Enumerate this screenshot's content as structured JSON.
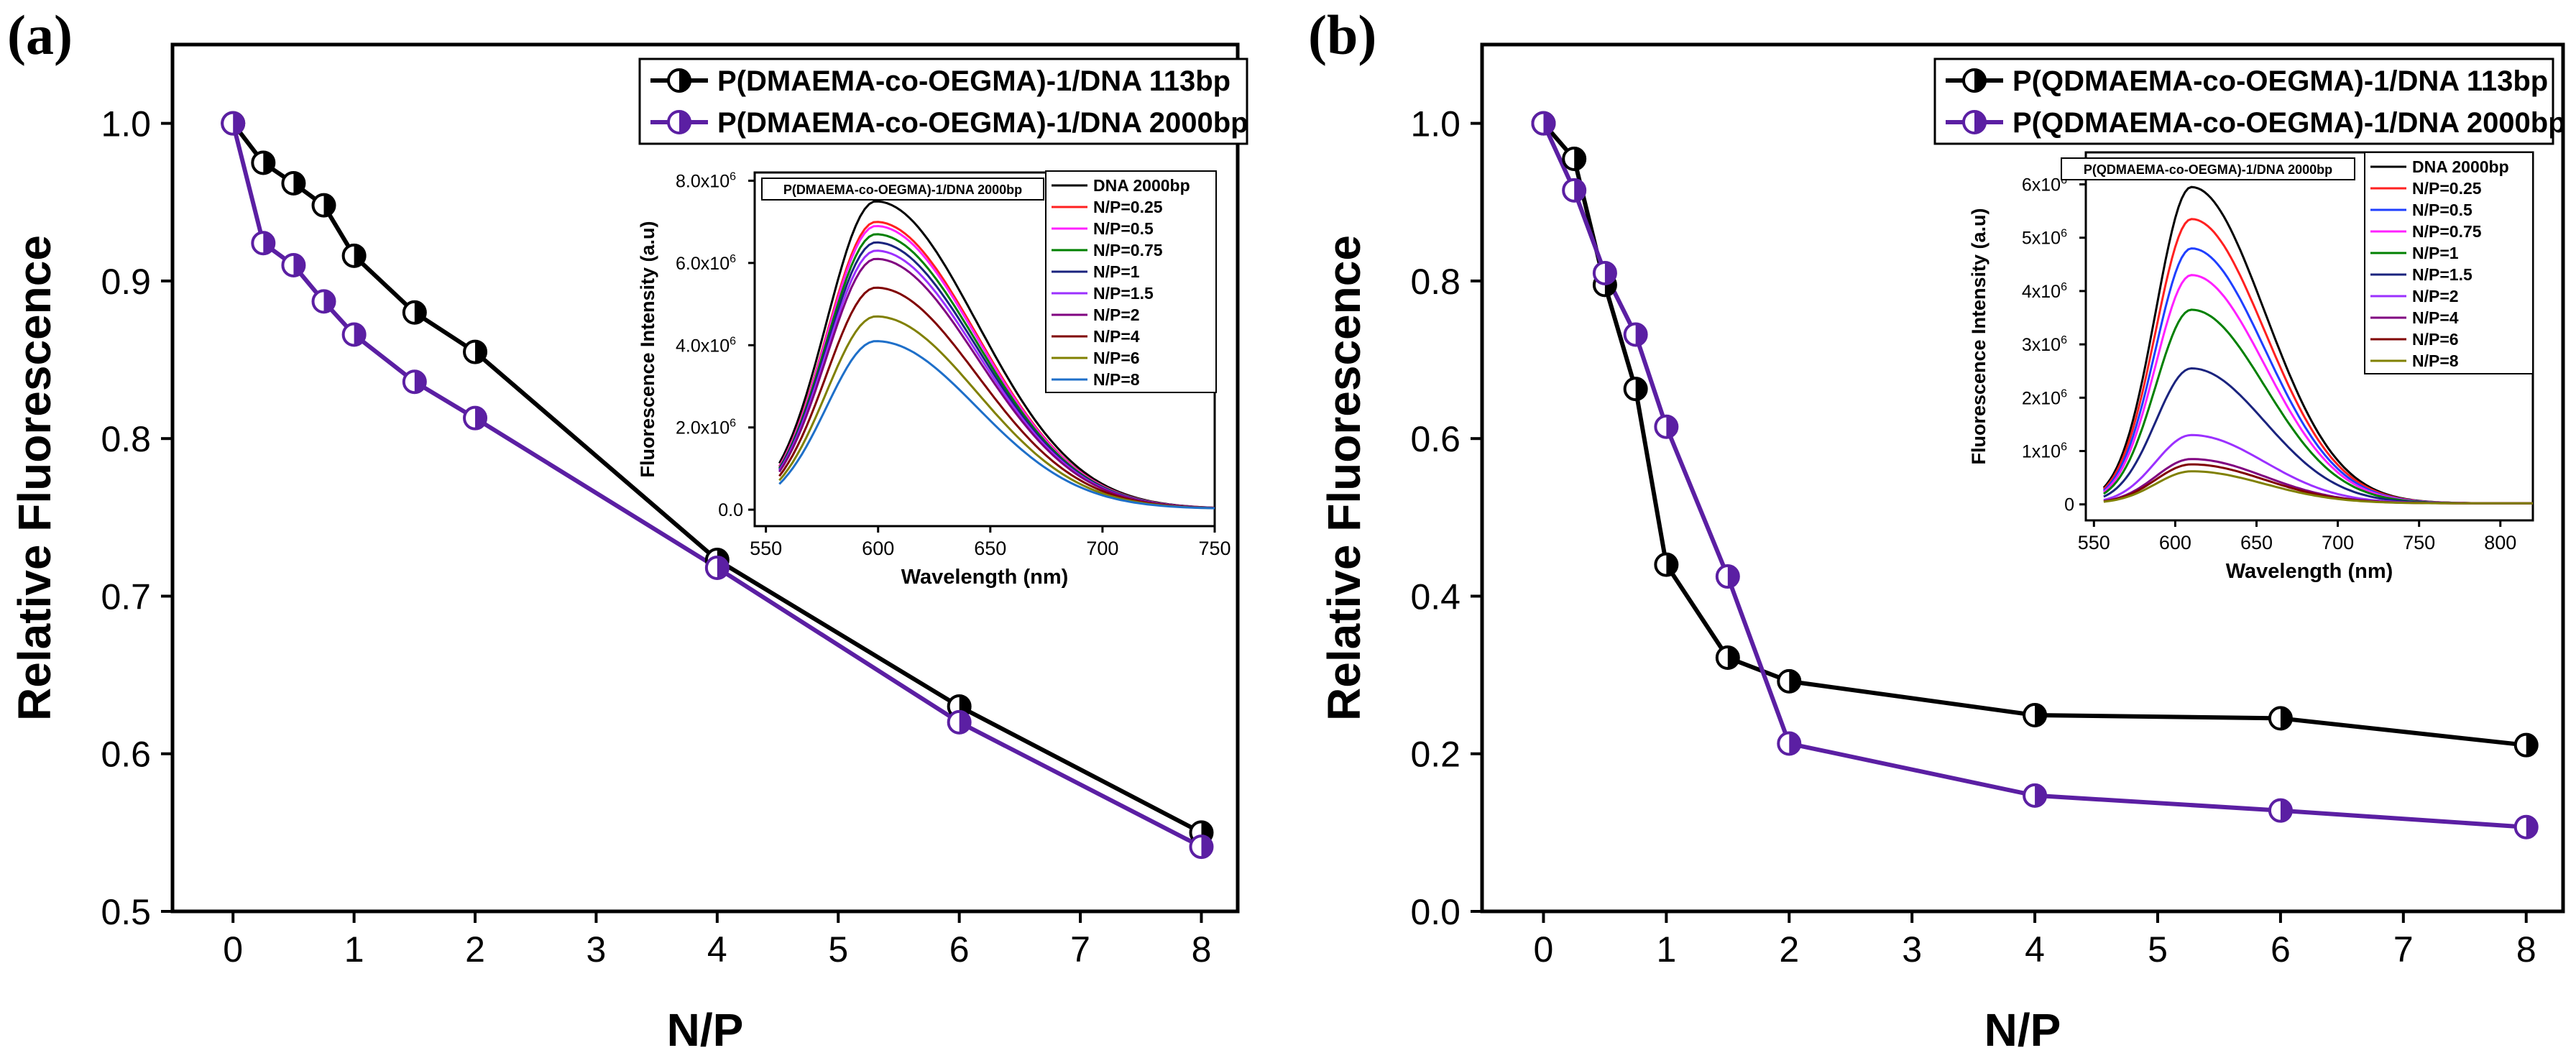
{
  "colors": {
    "dna113": "#000000",
    "dna2000": "#5b1fa3",
    "axis": "#000000"
  },
  "chart_data": [
    {
      "type": "line",
      "panel_label": "(a)",
      "xlabel": "N/P",
      "ylabel": "Relative Fluorescence",
      "xlim": [
        -0.5,
        8.3
      ],
      "ylim": [
        0.5,
        1.05
      ],
      "xticks": [
        0,
        1,
        2,
        3,
        4,
        5,
        6,
        7,
        8
      ],
      "xtick_labels": [
        "0",
        "1",
        "2",
        "3",
        "4",
        "5",
        "6",
        "7",
        "8"
      ],
      "yticks": [
        0.5,
        0.6,
        0.7,
        0.8,
        0.9,
        1.0
      ],
      "ytick_labels": [
        "0.5",
        "0.6",
        "0.7",
        "0.8",
        "0.9",
        "1.0"
      ],
      "legend": "top-right",
      "series": [
        {
          "name": "P(DMAEMA-co-OEGMA)-1/DNA 113bp",
          "color": "#000000",
          "x": [
            0,
            0.25,
            0.5,
            0.75,
            1,
            1.5,
            2,
            4,
            6,
            8
          ],
          "values": [
            1.0,
            0.975,
            0.962,
            0.948,
            0.916,
            0.88,
            0.855,
            0.723,
            0.63,
            0.55
          ]
        },
        {
          "name": "P(DMAEMA-co-OEGMA)-1/DNA 2000bp",
          "color": "#5b1fa3",
          "x": [
            0,
            0.25,
            0.5,
            0.75,
            1,
            1.5,
            2,
            4,
            6,
            8
          ],
          "values": [
            1.0,
            0.924,
            0.91,
            0.887,
            0.866,
            0.836,
            0.813,
            0.718,
            0.62,
            0.541
          ]
        }
      ],
      "inset": {
        "type": "line",
        "title": "P(DMAEMA-co-OEGMA)-1/DNA 2000bp",
        "xlabel": "Wavelength (nm)",
        "ylabel": "Fluorescence Intensity (a.u)",
        "xlim": [
          545,
          750
        ],
        "ylim": [
          -0.4,
          8.2
        ],
        "xticks": [
          550,
          600,
          650,
          700,
          750
        ],
        "xtick_labels": [
          "550",
          "600",
          "650",
          "700",
          "750"
        ],
        "yticks": [
          0,
          2,
          4,
          6,
          8
        ],
        "ytick_labels": [
          "0.0",
          "2.0x10",
          "4.0x10",
          "6.0x10",
          "8.0x10"
        ],
        "ytick_exponent": "6",
        "peak_x": 599,
        "x_start": 556,
        "x_end": 750,
        "series": [
          {
            "name": "DNA  2000bp",
            "color": "#000000",
            "peak": 7.5
          },
          {
            "name": "N/P=0.25",
            "color": "#ff2020",
            "peak": 7.0
          },
          {
            "name": "N/P=0.5",
            "color": "#ff20ff",
            "peak": 6.9
          },
          {
            "name": "N/P=0.75",
            "color": "#008000",
            "peak": 6.7
          },
          {
            "name": "N/P=1",
            "color": "#1a237e",
            "peak": 6.5
          },
          {
            "name": "N/P=1.5",
            "color": "#9b30ff",
            "peak": 6.3
          },
          {
            "name": "N/P=2",
            "color": "#800080",
            "peak": 6.1
          },
          {
            "name": "N/P=4",
            "color": "#800000",
            "peak": 5.4
          },
          {
            "name": "N/P=6",
            "color": "#808000",
            "peak": 4.7
          },
          {
            "name": "N/P=8",
            "color": "#1e6fc9",
            "peak": 4.1
          }
        ]
      }
    },
    {
      "type": "line",
      "panel_label": "(b)",
      "xlabel": "N/P",
      "ylabel": "Relative Fluorescence",
      "xlim": [
        -0.5,
        8.3
      ],
      "ylim": [
        0.0,
        1.1
      ],
      "xticks": [
        0,
        1,
        2,
        3,
        4,
        5,
        6,
        7,
        8
      ],
      "xtick_labels": [
        "0",
        "1",
        "2",
        "3",
        "4",
        "5",
        "6",
        "7",
        "8"
      ],
      "yticks": [
        0.0,
        0.2,
        0.4,
        0.6,
        0.8,
        1.0
      ],
      "ytick_labels": [
        "0.0",
        "0.2",
        "0.4",
        "0.6",
        "0.8",
        "1.0"
      ],
      "legend": "top-right",
      "series": [
        {
          "name": "P(QDMAEMA-co-OEGMA)-1/DNA 113bp",
          "color": "#000000",
          "x": [
            0,
            0.25,
            0.5,
            0.75,
            1,
            1.5,
            2,
            4,
            6,
            8
          ],
          "values": [
            1.0,
            0.955,
            0.795,
            0.663,
            0.44,
            0.322,
            0.292,
            0.249,
            0.245,
            0.211
          ]
        },
        {
          "name": "P(QDMAEMA-co-OEGMA)-1/DNA 2000bp",
          "color": "#5b1fa3",
          "x": [
            0,
            0.25,
            0.5,
            0.75,
            1,
            1.5,
            2,
            4,
            6,
            8
          ],
          "values": [
            1.0,
            0.915,
            0.81,
            0.732,
            0.615,
            0.425,
            0.213,
            0.147,
            0.128,
            0.107
          ]
        }
      ],
      "inset": {
        "type": "line",
        "title": "P(QDMAEMA-co-OEGMA)-1/DNA 2000bp",
        "xlabel": "Wavelength (nm)",
        "ylabel": "Fluorescence Intensity (a.u)",
        "xlim": [
          545,
          820
        ],
        "ylim": [
          -0.3,
          6.6
        ],
        "xticks": [
          550,
          600,
          650,
          700,
          750,
          800
        ],
        "xtick_labels": [
          "550",
          "600",
          "650",
          "700",
          "750",
          "800"
        ],
        "yticks": [
          0,
          1,
          2,
          3,
          4,
          5,
          6
        ],
        "ytick_labels": [
          "0",
          "1x10",
          "2x10",
          "3x10",
          "4x10",
          "5x10",
          "6x10"
        ],
        "ytick_exponent": "6",
        "peak_x": 610,
        "x_start": 556,
        "x_end": 820,
        "series": [
          {
            "name": "DNA 2000bp",
            "color": "#000000",
            "peak": 5.95
          },
          {
            "name": "N/P=0.25",
            "color": "#ff2020",
            "peak": 5.35
          },
          {
            "name": "N/P=0.5",
            "color": "#1f3fff",
            "peak": 4.8
          },
          {
            "name": "N/P=0.75",
            "color": "#ff20ff",
            "peak": 4.3
          },
          {
            "name": "N/P=1",
            "color": "#008000",
            "peak": 3.65
          },
          {
            "name": "N/P=1.5",
            "color": "#1a237e",
            "peak": 2.55
          },
          {
            "name": "N/P=2",
            "color": "#9b30ff",
            "peak": 1.3
          },
          {
            "name": "N/P=4",
            "color": "#800080",
            "peak": 0.85
          },
          {
            "name": "N/P=6",
            "color": "#800000",
            "peak": 0.75
          },
          {
            "name": "N/P=8",
            "color": "#808000",
            "peak": 0.62
          }
        ]
      }
    }
  ]
}
